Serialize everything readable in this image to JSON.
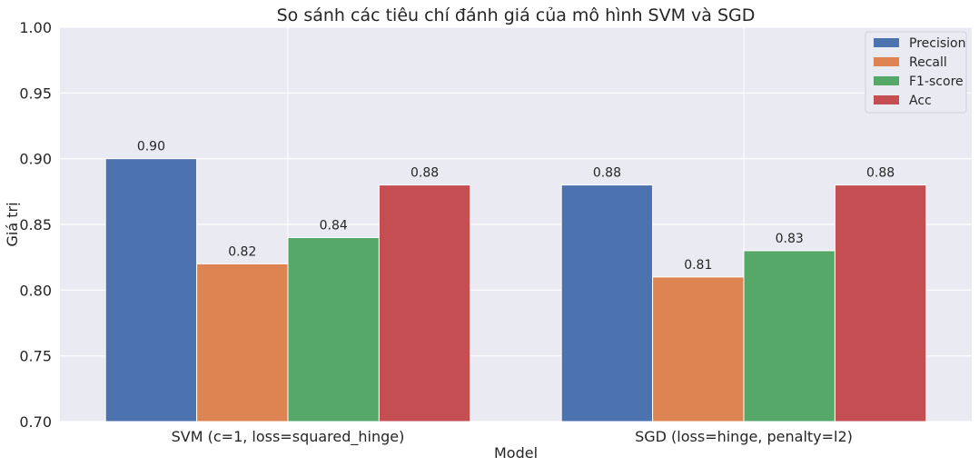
{
  "chart_data": {
    "type": "bar",
    "title": "So sánh các tiêu chí đánh giá của mô hình SVM và SGD",
    "xlabel": "Model",
    "ylabel": "Giá trị",
    "ylim": [
      0.7,
      1.0
    ],
    "yticks": [
      "0.70",
      "0.75",
      "0.80",
      "0.85",
      "0.90",
      "0.95",
      "1.00"
    ],
    "categories": [
      "SVM (c=1, loss=squared_hinge)",
      "SGD (loss=hinge, penalty=l2)"
    ],
    "series": [
      {
        "name": "Precision",
        "color": "#4c72b0",
        "values": [
          0.9,
          0.88
        ],
        "labels": [
          "0.90",
          "0.88"
        ]
      },
      {
        "name": "Recall",
        "color": "#dd8452",
        "values": [
          0.82,
          0.81
        ],
        "labels": [
          "0.82",
          "0.81"
        ]
      },
      {
        "name": "F1-score",
        "color": "#55a868",
        "values": [
          0.84,
          0.83
        ],
        "labels": [
          "0.84",
          "0.83"
        ]
      },
      {
        "name": "Acc",
        "color": "#c44e52",
        "values": [
          0.88,
          0.88
        ],
        "labels": [
          "0.88",
          "0.88"
        ]
      }
    ],
    "grid": true,
    "legend_position": "top-right",
    "background": "#eaeaf2"
  }
}
